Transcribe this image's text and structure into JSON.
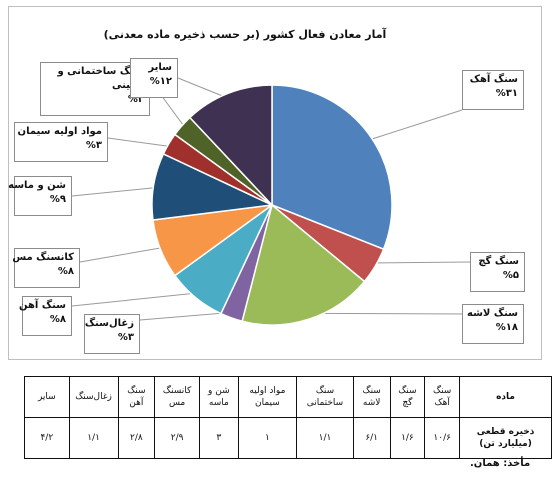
{
  "chart_data": {
    "type": "pie",
    "title": "آمار معادن فعال کشور (بر حسب ذخیره ماده معدنی)",
    "slices": [
      {
        "label": "سنگ آهک",
        "value": 31,
        "value_label": "%۳۱",
        "color": "#4f81bd"
      },
      {
        "label": "سنگ گچ",
        "value": 5,
        "value_label": "%۵",
        "color": "#c0504d"
      },
      {
        "label": "سنگ لاشه",
        "value": 18,
        "value_label": "%۱۸",
        "color": "#9bbb59"
      },
      {
        "label": "زغال‌سنگ",
        "value": 3,
        "value_label": "%۳",
        "color": "#8064a2"
      },
      {
        "label": "سنگ آهن",
        "value": 8,
        "value_label": "%۸",
        "color": "#4bacc6"
      },
      {
        "label": "کانسنگ مس",
        "value": 8,
        "value_label": "%۸",
        "color": "#f79646"
      },
      {
        "label": "شن و ماسه",
        "value": 9,
        "value_label": "%۹",
        "color": "#1f4e79"
      },
      {
        "label": "مواد اولیه سیمان",
        "value": 3,
        "value_label": "%۳",
        "color": "#a0302c"
      },
      {
        "label": "سنگ ساختمانی و تزئینی",
        "value": 3,
        "value_label": "%۳",
        "color": "#4f6228"
      },
      {
        "label": "سایر",
        "value": 12,
        "value_label": "%۱۲",
        "color": "#3f3151"
      }
    ]
  },
  "callouts": {
    "limestone": {
      "label": "سنگ آهک",
      "value": "%۳۱"
    },
    "gypsum": {
      "label": "سنگ گچ",
      "value": "%۵"
    },
    "rubble": {
      "label": "سنگ لاشه",
      "value": "%۱۸"
    },
    "coal": {
      "label": "زغال‌سنگ",
      "value": "%۳"
    },
    "iron": {
      "label": "سنگ آهن",
      "value": "%۸"
    },
    "copper": {
      "label": "کانسنگ مس",
      "value": "%۸"
    },
    "sand": {
      "label": "شن و ماسه",
      "value": "%۹"
    },
    "cement": {
      "label": "مواد اولیه سیمان",
      "value": "%۳"
    },
    "building_line1": "سنگ ساختمانی و",
    "building_line2": "تزئینی",
    "building_value": "%۳",
    "other": {
      "label": "سایر",
      "value": "%۱۲"
    }
  },
  "table": {
    "header_label": "ماده",
    "row_label_line1": "ذخیره قطعی",
    "row_label_line2": "(میلیارد تن)",
    "columns": [
      {
        "h1": "سنگ",
        "h2": "آهک",
        "value": "۱۰/۶"
      },
      {
        "h1": "سنگ",
        "h2": "گچ",
        "value": "۱/۶"
      },
      {
        "h1": "سنگ",
        "h2": "لاشه",
        "value": "۶/۱"
      },
      {
        "h1": "سنگ",
        "h2": "ساختمانی",
        "value": "۱/۱"
      },
      {
        "h1": "مواد اولیه",
        "h2": "سیمان",
        "value": "۱"
      },
      {
        "h1": "شن و",
        "h2": "ماسه",
        "value": "۳"
      },
      {
        "h1": "کانسنگ",
        "h2": "مس",
        "value": "۲/۹"
      },
      {
        "h1": "سنگ",
        "h2": "آهن",
        "value": "۲/۸"
      },
      {
        "h1": "زغال‌سنگ",
        "h2": "",
        "value": "۱/۱"
      },
      {
        "h1": "سایر",
        "h2": "",
        "value": "۴/۲"
      }
    ]
  },
  "source_note": "مأخذ: همان."
}
